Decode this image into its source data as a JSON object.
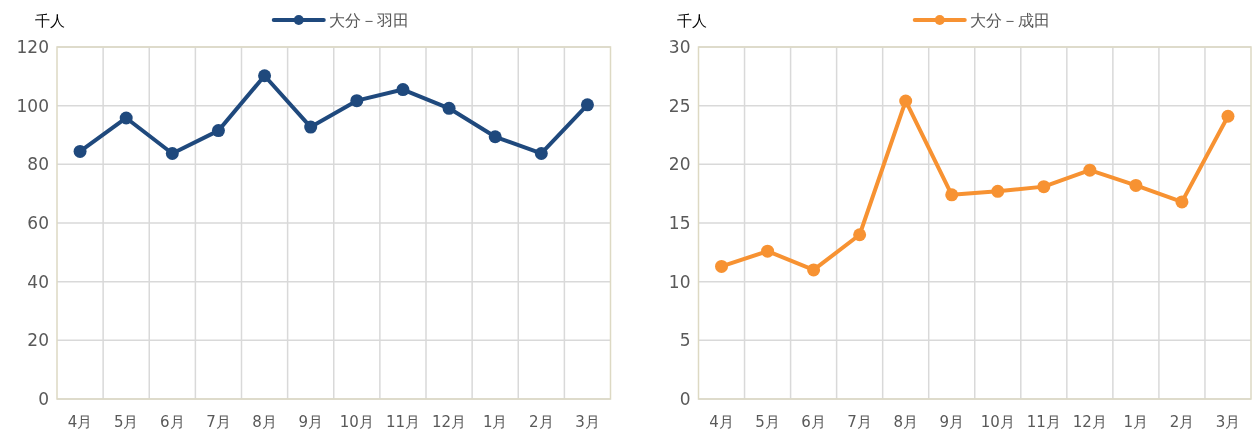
{
  "chart_data": [
    {
      "type": "line",
      "ylabel": "千人",
      "categories": [
        "4月",
        "5月",
        "6月",
        "7月",
        "8月",
        "9月",
        "10月",
        "11月",
        "12月",
        "1月",
        "2月",
        "3月"
      ],
      "series": [
        {
          "name": "大分－羽田",
          "color": "#1f497d",
          "values": [
            84.4,
            95.8,
            83.7,
            91.5,
            110.2,
            92.7,
            101.7,
            105.5,
            99.1,
            89.4,
            83.7,
            100.3
          ]
        }
      ],
      "ylim": [
        0,
        120
      ],
      "yticks": [
        0,
        20,
        40,
        60,
        80,
        100,
        120
      ],
      "grid": true,
      "legend": "top",
      "marker": "circle",
      "line_style": "solid"
    },
    {
      "type": "line",
      "ylabel": "千人",
      "categories": [
        "4月",
        "5月",
        "6月",
        "7月",
        "8月",
        "9月",
        "10月",
        "11月",
        "12月",
        "1月",
        "2月",
        "3月"
      ],
      "series": [
        {
          "name": "大分－成田",
          "color": "#f79232",
          "values": [
            11.3,
            12.6,
            11.0,
            14.0,
            25.4,
            17.4,
            17.7,
            18.1,
            19.5,
            18.2,
            16.8,
            24.1
          ]
        }
      ],
      "ylim": [
        0,
        30
      ],
      "yticks": [
        0,
        5,
        10,
        15,
        20,
        25,
        30
      ],
      "grid": true,
      "legend": "top",
      "marker": "circle",
      "line_style": "solid"
    }
  ]
}
